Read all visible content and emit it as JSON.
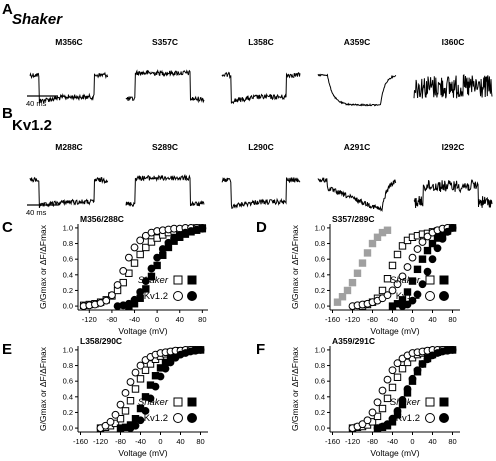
{
  "figure": {
    "label_A": "A",
    "label_B": "B",
    "group_A": "Shaker",
    "group_B": "Kv1.2",
    "scale_bar": "40 ms"
  },
  "traces_A": [
    {
      "mutant": "M356C",
      "shape": "down"
    },
    {
      "mutant": "S357C",
      "shape": "up"
    },
    {
      "mutant": "L358C",
      "shape": "down"
    },
    {
      "mutant": "A359C",
      "shape": "down-slow-smooth"
    },
    {
      "mutant": "I360C",
      "shape": "noise"
    }
  ],
  "traces_B": [
    {
      "mutant": "M288C",
      "shape": "down"
    },
    {
      "mutant": "S289C",
      "shape": "up"
    },
    {
      "mutant": "L290C",
      "shape": "down"
    },
    {
      "mutant": "A291C",
      "shape": "down-ramp"
    },
    {
      "mutant": "I292C",
      "shape": "up-noise"
    }
  ],
  "chart_data": [
    {
      "panel": "C",
      "title": "M356/288C",
      "type": "scatter",
      "xlabel": "Voltage (mV)",
      "ylabel": "G/Gmax or ΔF/ΔFmax",
      "xlim": [
        -140,
        90
      ],
      "ylim": [
        -0.05,
        1.05
      ],
      "xticks": [
        "-120",
        "-80",
        "-40",
        "0",
        "40",
        "80"
      ],
      "yticks": [
        "0.0",
        "0.2",
        "0.4",
        "0.6",
        "0.8",
        "1.0"
      ],
      "legend": [
        {
          "label": "Shaker"
        },
        {
          "label": "Kv1.2"
        }
      ],
      "series": [
        {
          "style": "open-square",
          "color": "#000000",
          "x": [
            -130,
            -120,
            -110,
            -100,
            -90,
            -80,
            -70,
            -60,
            -50,
            -40,
            -30,
            -20,
            -10,
            0,
            10,
            20,
            30,
            40,
            50,
            60,
            70,
            80
          ],
          "y": [
            0.01,
            0.02,
            0.03,
            0.05,
            0.08,
            0.13,
            0.2,
            0.3,
            0.42,
            0.55,
            0.66,
            0.75,
            0.82,
            0.87,
            0.91,
            0.94,
            0.96,
            0.97,
            0.98,
            0.99,
            1.0,
            1.0
          ]
        },
        {
          "style": "filled-square",
          "color": "#000000",
          "x": [
            -50,
            -40,
            -30,
            -20,
            -10,
            0,
            10,
            20,
            30,
            40,
            50,
            60,
            70,
            80
          ],
          "y": [
            0.0,
            0.03,
            0.1,
            0.22,
            0.38,
            0.52,
            0.65,
            0.75,
            0.83,
            0.88,
            0.92,
            0.95,
            0.97,
            0.99
          ]
        },
        {
          "style": "open-circle",
          "color": "#000000",
          "x": [
            -130,
            -120,
            -110,
            -100,
            -90,
            -80,
            -70,
            -60,
            -50,
            -40,
            -30,
            -20,
            -10,
            0,
            10,
            20,
            30,
            40,
            50,
            60,
            70,
            80
          ],
          "y": [
            0.0,
            0.01,
            0.02,
            0.04,
            0.07,
            0.14,
            0.27,
            0.45,
            0.62,
            0.75,
            0.84,
            0.9,
            0.94,
            0.96,
            0.97,
            0.98,
            0.99,
            0.99,
            1.0,
            1.0,
            1.0,
            1.0
          ]
        },
        {
          "style": "filled-circle",
          "color": "#000000",
          "x": [
            -70,
            -60,
            -50,
            -40,
            -30,
            -20,
            -10,
            0,
            10,
            20,
            30,
            40,
            50,
            60,
            70,
            80
          ],
          "y": [
            0.0,
            0.01,
            0.03,
            0.08,
            0.18,
            0.32,
            0.48,
            0.62,
            0.73,
            0.81,
            0.87,
            0.91,
            0.94,
            0.96,
            0.98,
            0.99
          ]
        }
      ]
    },
    {
      "panel": "D",
      "title": "S357/289C",
      "type": "scatter",
      "xlabel": "Voltage (mV)",
      "ylabel": "G/Gmax or ΔF/ΔFmax",
      "xlim": [
        -165,
        95
      ],
      "ylim": [
        -0.05,
        1.05
      ],
      "xticks": [
        "-160",
        "-120",
        "-80",
        "-40",
        "0",
        "40",
        "80"
      ],
      "yticks": [
        "0.0",
        "0.2",
        "0.4",
        "0.6",
        "0.8",
        "1.0"
      ],
      "legend": [
        {
          "label": "Shaker"
        },
        {
          "label": "Kv1.2"
        }
      ],
      "series": [
        {
          "style": "gray-square",
          "color": "#a0a0a0",
          "x": [
            -150,
            -140,
            -130,
            -120,
            -110,
            -100,
            -90,
            -80,
            -70,
            -60,
            -50
          ],
          "y": [
            0.05,
            0.12,
            0.2,
            0.3,
            0.42,
            0.55,
            0.68,
            0.8,
            0.88,
            0.94,
            0.97
          ]
        },
        {
          "style": "open-square",
          "color": "#000000",
          "x": [
            -100,
            -90,
            -80,
            -70,
            -60,
            -50,
            -40,
            -30,
            -20,
            -10,
            0,
            10,
            20,
            30,
            40,
            50,
            60,
            70,
            80
          ],
          "y": [
            0.0,
            0.02,
            0.05,
            0.1,
            0.2,
            0.35,
            0.52,
            0.66,
            0.77,
            0.84,
            0.88,
            0.9,
            0.92,
            0.93,
            0.95,
            0.96,
            0.97,
            0.98,
            1.0
          ]
        },
        {
          "style": "filled-square",
          "color": "#000000",
          "x": [
            -40,
            -30,
            -20,
            -10,
            0,
            10,
            20,
            30,
            40,
            50,
            60,
            70,
            80
          ],
          "y": [
            0.0,
            0.03,
            0.08,
            0.18,
            0.32,
            0.47,
            0.6,
            0.71,
            0.8,
            0.87,
            0.92,
            0.96,
            1.0
          ]
        },
        {
          "style": "open-circle",
          "color": "#000000",
          "x": [
            -120,
            -110,
            -100,
            -90,
            -80,
            -70,
            -60,
            -50,
            -40,
            -30,
            -20,
            -10,
            0,
            10,
            20,
            30,
            40,
            50,
            60,
            70,
            80
          ],
          "y": [
            0.0,
            0.01,
            0.02,
            0.03,
            0.05,
            0.07,
            0.1,
            0.14,
            0.2,
            0.28,
            0.38,
            0.5,
            0.62,
            0.73,
            0.82,
            0.89,
            0.94,
            0.97,
            0.99,
            1.0,
            1.0
          ]
        },
        {
          "style": "filled-circle",
          "color": "#000000",
          "x": [
            -20,
            -10,
            0,
            10,
            20,
            30,
            40,
            50,
            60,
            70,
            80
          ],
          "y": [
            0.0,
            0.02,
            0.07,
            0.15,
            0.28,
            0.44,
            0.6,
            0.74,
            0.86,
            0.95,
            1.0
          ]
        }
      ]
    },
    {
      "panel": "E",
      "title": "L358/290C",
      "type": "scatter",
      "xlabel": "Voltage (mV)",
      "ylabel": "G/Gmax or ΔF/ΔFmax",
      "xlim": [
        -165,
        95
      ],
      "ylim": [
        -0.05,
        1.05
      ],
      "xticks": [
        "-160",
        "-120",
        "-80",
        "-40",
        "0",
        "40",
        "80"
      ],
      "yticks": [
        "0.0",
        "0.2",
        "0.4",
        "0.6",
        "0.8",
        "1.0"
      ],
      "legend": [
        {
          "label": "Shaker"
        },
        {
          "label": "Kv1.2"
        }
      ],
      "series": [
        {
          "style": "open-square",
          "color": "#000000",
          "x": [
            -120,
            -110,
            -100,
            -90,
            -80,
            -70,
            -60,
            -50,
            -40,
            -30,
            -20,
            -10,
            0,
            10,
            20,
            30,
            40,
            50,
            60,
            70,
            80
          ],
          "y": [
            0.0,
            0.01,
            0.03,
            0.06,
            0.12,
            0.22,
            0.35,
            0.5,
            0.63,
            0.74,
            0.82,
            0.88,
            0.92,
            0.95,
            0.97,
            0.98,
            0.99,
            0.99,
            1.0,
            1.0,
            1.0
          ]
        },
        {
          "style": "filled-square",
          "color": "#000000",
          "x": [
            -80,
            -70,
            -60,
            -50,
            -40,
            -30,
            -20,
            -10,
            0,
            10,
            20,
            30,
            40,
            50,
            60,
            70,
            80
          ],
          "y": [
            0.0,
            0.01,
            0.04,
            0.12,
            0.25,
            0.4,
            0.55,
            0.67,
            0.77,
            0.84,
            0.89,
            0.93,
            0.96,
            0.98,
            0.99,
            1.0,
            1.0
          ]
        },
        {
          "style": "open-circle",
          "color": "#000000",
          "x": [
            -120,
            -110,
            -100,
            -90,
            -80,
            -70,
            -60,
            -50,
            -40,
            -30,
            -20,
            -10,
            0,
            10,
            20,
            30,
            40,
            50,
            60,
            70,
            80
          ],
          "y": [
            0.0,
            0.03,
            0.08,
            0.17,
            0.3,
            0.45,
            0.59,
            0.71,
            0.8,
            0.87,
            0.91,
            0.94,
            0.96,
            0.97,
            0.98,
            0.99,
            0.99,
            1.0,
            1.0,
            1.0,
            1.0
          ]
        },
        {
          "style": "filled-circle",
          "color": "#000000",
          "x": [
            -60,
            -50,
            -40,
            -30,
            -20,
            -10,
            0,
            10,
            20,
            30,
            40,
            50,
            60,
            70,
            80
          ],
          "y": [
            0.0,
            0.03,
            0.1,
            0.22,
            0.38,
            0.53,
            0.66,
            0.76,
            0.84,
            0.9,
            0.94,
            0.96,
            0.98,
            0.99,
            1.0
          ]
        }
      ]
    },
    {
      "panel": "F",
      "title": "A359/291C",
      "type": "scatter",
      "xlabel": "Voltage (mV)",
      "ylabel": "G/Gmax or ΔF/ΔFmax",
      "xlim": [
        -165,
        95
      ],
      "ylim": [
        -0.05,
        1.05
      ],
      "xticks": [
        "-160",
        "-120",
        "-80",
        "-40",
        "0",
        "40",
        "80"
      ],
      "yticks": [
        "0.0",
        "0.2",
        "0.4",
        "0.6",
        "0.8",
        "1.0"
      ],
      "legend": [
        {
          "label": "Shaker"
        },
        {
          "label": "Kv1.2"
        }
      ],
      "series": [
        {
          "style": "open-square",
          "color": "#000000",
          "x": [
            -120,
            -110,
            -100,
            -90,
            -80,
            -70,
            -60,
            -50,
            -40,
            -30,
            -20,
            -10,
            0,
            10,
            20,
            30,
            40,
            50,
            60,
            70,
            80
          ],
          "y": [
            0.0,
            0.01,
            0.02,
            0.04,
            0.08,
            0.15,
            0.25,
            0.38,
            0.52,
            0.65,
            0.76,
            0.84,
            0.9,
            0.94,
            0.96,
            0.98,
            0.99,
            0.99,
            1.0,
            1.0,
            1.0
          ]
        },
        {
          "style": "filled-square",
          "color": "#000000",
          "x": [
            -70,
            -60,
            -50,
            -40,
            -30,
            -20,
            -10,
            0,
            10,
            20,
            30,
            40,
            50,
            60,
            70,
            80
          ],
          "y": [
            0.0,
            0.01,
            0.03,
            0.08,
            0.17,
            0.3,
            0.45,
            0.6,
            0.72,
            0.82,
            0.89,
            0.94,
            0.97,
            0.99,
            1.0,
            1.0
          ]
        },
        {
          "style": "open-circle",
          "color": "#000000",
          "x": [
            -120,
            -110,
            -100,
            -90,
            -80,
            -70,
            -60,
            -50,
            -40,
            -30,
            -20,
            -10,
            0,
            10,
            20,
            30,
            40,
            50,
            60,
            70,
            80
          ],
          "y": [
            0.0,
            0.02,
            0.05,
            0.1,
            0.2,
            0.33,
            0.48,
            0.62,
            0.74,
            0.83,
            0.89,
            0.93,
            0.96,
            0.97,
            0.98,
            0.99,
            1.0,
            1.0,
            1.0,
            1.0,
            1.0
          ]
        },
        {
          "style": "filled-circle",
          "color": "#000000",
          "x": [
            -70,
            -60,
            -50,
            -40,
            -30,
            -20,
            -10,
            0,
            10,
            20,
            30,
            40,
            50,
            60,
            70,
            80
          ],
          "y": [
            0.0,
            0.02,
            0.05,
            0.12,
            0.22,
            0.36,
            0.5,
            0.63,
            0.74,
            0.82,
            0.88,
            0.93,
            0.96,
            0.98,
            0.99,
            1.0
          ]
        }
      ]
    }
  ]
}
